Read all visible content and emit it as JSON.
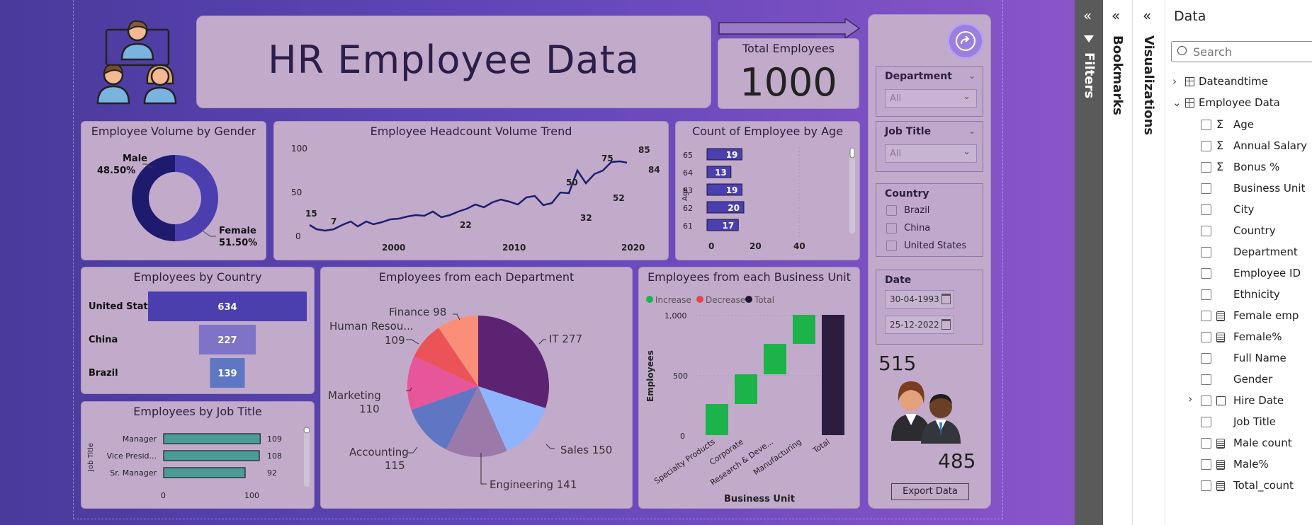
{
  "dashboard": {
    "title": "HR Employee Data",
    "total_employees": {
      "label": "Total Employees",
      "value": "1000"
    }
  },
  "gender_chart": {
    "title": "Employee Volume by Gender",
    "male": {
      "label": "Male",
      "pct": "48.50%"
    },
    "female": {
      "label": "Female",
      "pct": "51.50%"
    },
    "colors": {
      "male": "#1e1b6e",
      "female": "#4b3fb0"
    }
  },
  "headcount_chart": {
    "title": "Employee Headcount Volume Trend",
    "y_ticks": [
      "100",
      "50",
      "0"
    ],
    "x_ticks": [
      "2000",
      "2010",
      "2020"
    ],
    "data_labels": [
      "15",
      "7",
      "22",
      "50",
      "32",
      "75",
      "52",
      "85",
      "84"
    ]
  },
  "age_chart": {
    "title": "Count of Employee by Age",
    "ylabel": "Age",
    "x_ticks": [
      "0",
      "20",
      "40"
    ],
    "categories": [
      "65",
      "64",
      "63",
      "62",
      "61"
    ],
    "values": [
      19,
      13,
      19,
      20,
      17
    ]
  },
  "country_chart": {
    "title": "Employees by Country",
    "rows": [
      {
        "label": "United States",
        "value": 634
      },
      {
        "label": "China",
        "value": 227
      },
      {
        "label": "Brazil",
        "value": 139
      }
    ]
  },
  "department_chart": {
    "title": "Employees from each Department",
    "labels": {
      "finance": "Finance 98",
      "hr_name": "Human Resou...",
      "hr_value": "109",
      "marketing_name": "Marketing",
      "marketing_value": "110",
      "accounting_name": "Accounting",
      "accounting_value": "115",
      "it": "IT 277",
      "sales": "Sales 150",
      "engineering": "Engineering 141"
    }
  },
  "business_unit_chart": {
    "title": "Employees from each Business Unit",
    "legend": {
      "increase": "Increase",
      "decrease": "Decrease",
      "total": "Total"
    },
    "ylabel": "Employees",
    "xlabel": "Business Unit",
    "y_ticks": [
      "1,000",
      "500",
      "0"
    ],
    "categories": [
      "Specialty Products",
      "Corporate",
      "Research & Deve...",
      "Manufacturing",
      "Total"
    ]
  },
  "job_title_chart": {
    "title": "Employees by Job Title",
    "ylabel": "Job Title",
    "x_ticks": [
      "0",
      "100"
    ],
    "rows": [
      {
        "label": "Manager",
        "value": 109
      },
      {
        "label": "Vice Presid...",
        "value": 108
      },
      {
        "label": "Sr. Manager",
        "value": 92
      }
    ]
  },
  "filters": {
    "department": {
      "title": "Department",
      "value": "All"
    },
    "job_title": {
      "title": "Job Title",
      "value": "All"
    },
    "country": {
      "title": "Country",
      "options": [
        "Brazil",
        "China",
        "United States"
      ]
    },
    "date": {
      "title": "Date",
      "start": "30-04-1993",
      "end": "25-12-2022"
    },
    "female_count": "515",
    "male_count": "485",
    "export_label": "Export Data"
  },
  "panes": {
    "filters_label": "Filters",
    "bookmarks_label": "Bookmarks",
    "visualizations_label": "Visualizations",
    "data_title": "Data",
    "search_placeholder": "Search",
    "tables": [
      "Dateandtime",
      "Employee Data"
    ],
    "fields": [
      {
        "label": "Age",
        "icon": "sigma-icon"
      },
      {
        "label": "Annual Salary",
        "icon": "sigma-icon"
      },
      {
        "label": "Bonus %",
        "icon": "sigma-icon"
      },
      {
        "label": "Business Unit",
        "icon": ""
      },
      {
        "label": "City",
        "icon": ""
      },
      {
        "label": "Country",
        "icon": ""
      },
      {
        "label": "Department",
        "icon": ""
      },
      {
        "label": "Employee ID",
        "icon": ""
      },
      {
        "label": "Ethnicity",
        "icon": ""
      },
      {
        "label": "Female emp",
        "icon": "calculator-icon"
      },
      {
        "label": "Female%",
        "icon": "calculator-icon"
      },
      {
        "label": "Full Name",
        "icon": ""
      },
      {
        "label": "Gender",
        "icon": ""
      },
      {
        "label": "Hire Date",
        "icon": "table-icon"
      },
      {
        "label": "Job Title",
        "icon": ""
      },
      {
        "label": "Male count",
        "icon": "calculator-icon"
      },
      {
        "label": "Male%",
        "icon": "calculator-icon"
      },
      {
        "label": "Total_count",
        "icon": "calculator-icon"
      }
    ]
  }
}
